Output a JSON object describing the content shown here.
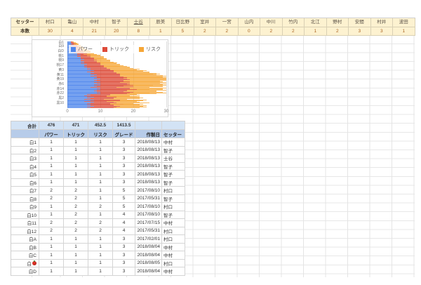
{
  "colors": {
    "band_bg": "#fdf2d0",
    "band_number_text": "#a85f1e",
    "totals_row_bg": "#d3e3f5",
    "header_row_bg": "#b7cce9",
    "series_power": "#4e86ec",
    "series_trick": "#dd4b39",
    "series_risk": "#f6a636"
  },
  "sheet": {
    "top_band": {
      "row1_label": "セッター",
      "row2_label": "本数",
      "setters": [
        {
          "name": "村口",
          "count": "30"
        },
        {
          "name": "亀山",
          "count": "4"
        },
        {
          "name": "中村",
          "count": "21"
        },
        {
          "name": "智子",
          "count": "20"
        },
        {
          "name": "士谷",
          "count": "8",
          "underline": true
        },
        {
          "name": "辰美",
          "count": "1"
        },
        {
          "name": "日比野",
          "count": "5"
        },
        {
          "name": "室井",
          "count": "2"
        },
        {
          "name": "一宮",
          "count": "2"
        },
        {
          "name": "山内",
          "count": "0"
        },
        {
          "name": "中川",
          "count": "2"
        },
        {
          "name": "竹内",
          "count": "2"
        },
        {
          "name": "北江",
          "count": "1"
        },
        {
          "name": "野村",
          "count": "2"
        },
        {
          "name": "安間",
          "count": "3"
        },
        {
          "name": "村井",
          "count": "3"
        },
        {
          "name": "波田",
          "count": "1"
        }
      ]
    },
    "table": {
      "total_label": "合計",
      "totals": [
        "476",
        "471",
        "452.5",
        "1413.5",
        "",
        ""
      ],
      "columns": [
        "パワー",
        "トリック",
        "リスク",
        "グレード",
        "作製日",
        "セッター"
      ],
      "rows": [
        {
          "label": "白1",
          "power": "1",
          "trick": "1",
          "risk": "1",
          "grade": "3",
          "date": "2018/08/13",
          "setter": "中村"
        },
        {
          "label": "白2",
          "power": "1",
          "trick": "1",
          "risk": "1",
          "grade": "3",
          "date": "2018/08/13",
          "setter": "智子"
        },
        {
          "label": "白3",
          "power": "1",
          "trick": "1",
          "risk": "1",
          "grade": "3",
          "date": "2018/08/13",
          "setter": "士谷"
        },
        {
          "label": "白4",
          "power": "1",
          "trick": "1",
          "risk": "1",
          "grade": "3",
          "date": "2018/08/13",
          "setter": "智子"
        },
        {
          "label": "白5",
          "power": "1",
          "trick": "1",
          "risk": "1",
          "grade": "3",
          "date": "2018/08/13",
          "setter": "智子"
        },
        {
          "label": "白6",
          "power": "1",
          "trick": "1",
          "risk": "1",
          "grade": "3",
          "date": "2018/08/13",
          "setter": "智子"
        },
        {
          "label": "白7",
          "power": "2",
          "trick": "2",
          "risk": "1",
          "grade": "5",
          "date": "2017/08/10",
          "setter": "村口"
        },
        {
          "label": "白8",
          "power": "2",
          "trick": "2",
          "risk": "1",
          "grade": "5",
          "date": "2017/05/31",
          "setter": "智子"
        },
        {
          "label": "白9",
          "power": "1",
          "trick": "2",
          "risk": "2",
          "grade": "5",
          "date": "2017/08/10",
          "setter": "村口"
        },
        {
          "label": "白10",
          "power": "1",
          "trick": "2",
          "risk": "1",
          "grade": "4",
          "date": "2017/08/10",
          "setter": "智子"
        },
        {
          "label": "白11",
          "power": "2",
          "trick": "2",
          "risk": "2",
          "grade": "4",
          "date": "2017/07/15",
          "setter": "中村"
        },
        {
          "label": "白12",
          "power": "2",
          "trick": "2",
          "risk": "2",
          "grade": "4",
          "date": "2017/05/31",
          "setter": "村口"
        },
        {
          "label": "白A",
          "power": "1",
          "trick": "1",
          "risk": "1",
          "grade": "3",
          "date": "2017/02/01",
          "setter": "村口"
        },
        {
          "label": "白B",
          "power": "1",
          "trick": "1",
          "risk": "1",
          "grade": "3",
          "date": "2018/08/04",
          "setter": "中村"
        },
        {
          "label": "白C",
          "power": "1",
          "trick": "1",
          "risk": "1",
          "grade": "3",
          "date": "2018/08/04",
          "setter": "中村"
        },
        {
          "label": "白",
          "icon": "apple",
          "power": "1",
          "trick": "1",
          "risk": "1",
          "grade": "3",
          "date": "2018/08/05",
          "setter": "村口"
        },
        {
          "label": "白D",
          "power": "1",
          "trick": "1",
          "risk": "1",
          "grade": "3",
          "date": "2018/08/04",
          "setter": "中村"
        }
      ]
    }
  },
  "chart_data": {
    "type": "bar",
    "orientation": "horizontal",
    "stacked": true,
    "legend": [
      "パワー",
      "トリック",
      "リスク"
    ],
    "legend_position": "top",
    "x_ticks": [
      0,
      10,
      20,
      30
    ],
    "xlim": [
      0,
      30
    ],
    "y_tick_labels": [
      "白1",
      "白9",
      "白D",
      "桃1",
      "桃9",
      "桃17",
      "黄3",
      "黄11",
      "黄19",
      "赤6",
      "赤14",
      "赤22",
      "黒2",
      "黒10"
    ],
    "y_tick_every": 8,
    "grid": true,
    "series": [
      {
        "name": "パワー",
        "color": "#4e86ec",
        "values": [
          1,
          1,
          1,
          1,
          1.5,
          1,
          2,
          1,
          2,
          1.5,
          2,
          2,
          2,
          2.5,
          2,
          3,
          2,
          2,
          3,
          2,
          3,
          3,
          2,
          4,
          3,
          3,
          4,
          4,
          3,
          4,
          5,
          4,
          4,
          5,
          4,
          5,
          5,
          4,
          6,
          5,
          5,
          5,
          6,
          5,
          6,
          7,
          6,
          7,
          6,
          8,
          7,
          6,
          8,
          7,
          8,
          7,
          9,
          8,
          7,
          9,
          8,
          9,
          8,
          10,
          9,
          8,
          9,
          7,
          10,
          8,
          9,
          10,
          8,
          9,
          10,
          8,
          9,
          7,
          10,
          9,
          8,
          10,
          9,
          8,
          9,
          10,
          8,
          9,
          10,
          6,
          7,
          5,
          7,
          6,
          8,
          6,
          7,
          5,
          8,
          6,
          7,
          5,
          8,
          7,
          6,
          8,
          7,
          6,
          7,
          8,
          6,
          7
        ]
      },
      {
        "name": "トリック",
        "color": "#dd4b39",
        "values": [
          0.5,
          1,
          1,
          1,
          1,
          1,
          1,
          2,
          1.5,
          2,
          2,
          1,
          2,
          2,
          2,
          2,
          3,
          2,
          2,
          3,
          3,
          2,
          4,
          3,
          3,
          4,
          3,
          4,
          4,
          4,
          3,
          5,
          4,
          4,
          5,
          4,
          5,
          6,
          4,
          5,
          6,
          5,
          5,
          6,
          6,
          5,
          7,
          6,
          8,
          6,
          7,
          8,
          7,
          8,
          8,
          9,
          7,
          8,
          9,
          8,
          10,
          9,
          9,
          8,
          10,
          9,
          8,
          10,
          9,
          8,
          10,
          8,
          11,
          9,
          10,
          9,
          11,
          8,
          9,
          10,
          8,
          11,
          9,
          10,
          8,
          10,
          9,
          10,
          8,
          7,
          6,
          7,
          8,
          6,
          7,
          8,
          7,
          6,
          8,
          7,
          9,
          7,
          6,
          8,
          7,
          9,
          6,
          8,
          7,
          8,
          9,
          7
        ]
      },
      {
        "name": "リスク",
        "color": "#f6a636",
        "values": [
          0.5,
          0.5,
          1,
          1,
          1,
          1.5,
          1,
          1,
          1,
          1.5,
          1,
          2,
          2,
          1.5,
          2.5,
          2,
          2,
          3,
          2,
          3,
          2,
          4,
          3,
          3,
          4,
          4,
          4,
          3,
          5,
          4,
          4,
          4,
          5,
          4,
          5,
          6,
          5,
          5,
          6,
          6,
          6,
          6,
          7,
          8,
          7,
          8,
          9,
          8,
          9,
          10,
          9,
          11,
          10,
          12,
          10,
          12,
          11,
          13,
          14,
          12,
          12,
          11,
          13,
          12,
          11,
          13,
          11,
          12,
          10,
          14,
          9,
          12,
          10,
          8,
          10,
          12,
          9,
          10,
          11,
          10,
          9,
          8,
          12,
          9,
          10,
          9,
          8,
          11,
          9,
          8,
          9,
          7,
          6,
          10,
          7,
          9,
          8,
          7,
          8,
          10,
          7,
          9,
          8,
          10,
          7,
          6,
          9,
          8,
          10,
          7,
          9,
          8
        ]
      }
    ]
  }
}
